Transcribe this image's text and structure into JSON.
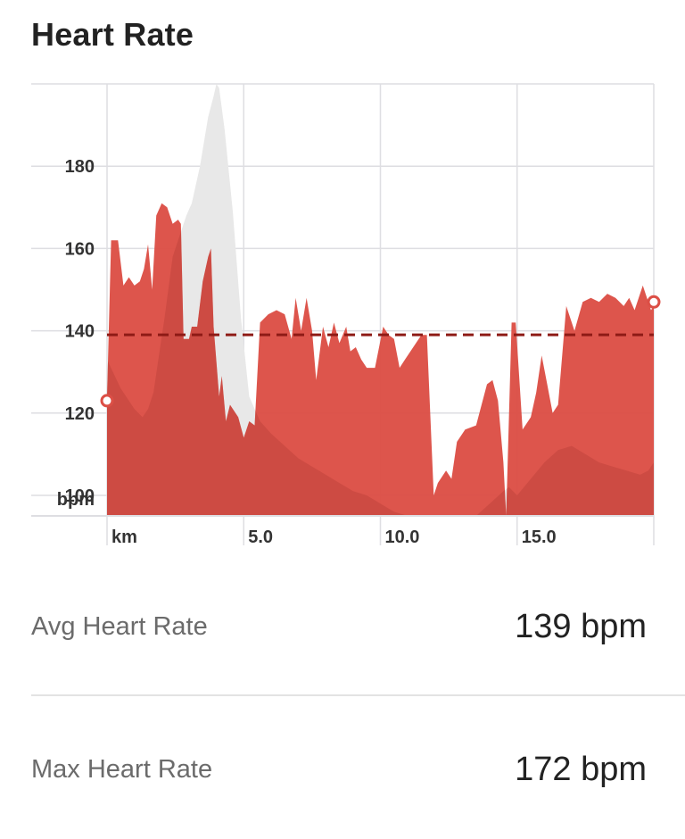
{
  "header": {
    "title": "Heart Rate"
  },
  "stats": [
    {
      "label": "Avg Heart Rate",
      "value": "139 bpm"
    },
    {
      "label": "Max Heart Rate",
      "value": "172 bpm"
    }
  ],
  "colors": {
    "hr_fill": "#dc4f46",
    "elevation_fill": "#e8e8e8",
    "elevation_overlay": "#b03a35",
    "avg_line": "#8e1b16",
    "grid": "#dedee2",
    "marker": "#dc4f46"
  },
  "chart_data": {
    "type": "area",
    "xlabel": "km",
    "ylabel": "bpm",
    "xlim": [
      0,
      20
    ],
    "ylim": [
      95,
      200
    ],
    "x_ticks": [
      {
        "value": 5,
        "label": "5.0"
      },
      {
        "value": 10,
        "label": "10.0"
      },
      {
        "value": 15,
        "label": "15.0"
      }
    ],
    "y_ticks": [
      100,
      120,
      140,
      160,
      180
    ],
    "grid": true,
    "average_line": 139,
    "series": [
      {
        "kind": "heart_rate",
        "x": [
          0,
          0.15,
          0.4,
          0.6,
          0.8,
          1.0,
          1.2,
          1.35,
          1.5,
          1.65,
          1.8,
          2.0,
          2.2,
          2.4,
          2.6,
          2.7,
          2.8,
          3.0,
          3.1,
          3.3,
          3.5,
          3.7,
          3.8,
          3.9,
          4.1,
          4.2,
          4.35,
          4.5,
          4.8,
          5.0,
          5.2,
          5.4,
          5.6,
          5.9,
          6.2,
          6.5,
          6.75,
          6.9,
          7.1,
          7.3,
          7.5,
          7.65,
          7.9,
          8.1,
          8.3,
          8.5,
          8.75,
          8.9,
          9.1,
          9.3,
          9.5,
          9.8,
          10.1,
          10.3,
          10.5,
          10.7,
          10.9,
          11.2,
          11.5,
          11.7,
          11.95,
          12.1,
          12.4,
          12.6,
          12.8,
          13.1,
          13.5,
          13.9,
          14.1,
          14.3,
          14.5,
          14.6,
          14.8,
          14.95,
          15.2,
          15.5,
          15.7,
          15.9,
          16.1,
          16.3,
          16.5,
          16.8,
          17.1,
          17.4,
          17.7,
          18.0,
          18.3,
          18.6,
          18.9,
          19.1,
          19.3,
          19.6,
          19.9,
          20.0
        ],
        "y": [
          124,
          162,
          162,
          151,
          153,
          151,
          152,
          155,
          161,
          150,
          168,
          171,
          170,
          166,
          167,
          166,
          138,
          138,
          141,
          141,
          152,
          158,
          160,
          141,
          124,
          129,
          118,
          122,
          119,
          114,
          118,
          117,
          142,
          144,
          145,
          144,
          138,
          148,
          140,
          148,
          140,
          128,
          141,
          136,
          142,
          137,
          141,
          135,
          136,
          133,
          131,
          131,
          141,
          139,
          138,
          131,
          133,
          136,
          139,
          139,
          100,
          103,
          106,
          104,
          113,
          116,
          117,
          127,
          128,
          123,
          108,
          95,
          142,
          142,
          116,
          119,
          125,
          134,
          127,
          120,
          122,
          146,
          140,
          147,
          148,
          147,
          149,
          148,
          146,
          148,
          145,
          151,
          145,
          146
        ]
      },
      {
        "kind": "elevation",
        "x": [
          0,
          0.5,
          1.0,
          1.3,
          1.5,
          1.7,
          1.9,
          2.1,
          2.4,
          2.7,
          2.9,
          3.1,
          3.4,
          3.7,
          3.9,
          4.0,
          4.1,
          4.3,
          4.6,
          4.9,
          5.2,
          5.6,
          6.0,
          6.5,
          7.0,
          7.5,
          8.0,
          8.5,
          9.0,
          9.5,
          10.0,
          10.5,
          11.0,
          11.5,
          12.0,
          12.5,
          13.0,
          13.5,
          14.0,
          14.5,
          14.7,
          15.0,
          15.5,
          16.0,
          16.5,
          17.0,
          17.5,
          18.0,
          18.5,
          19.0,
          19.5,
          19.8,
          20.0
        ],
        "y": [
          133,
          126,
          121,
          119,
          121,
          125,
          134,
          143,
          158,
          164,
          168,
          171,
          180,
          192,
          197,
          200,
          199,
          189,
          169,
          143,
          124,
          118,
          115,
          112,
          109,
          107,
          105,
          103,
          101,
          100,
          98,
          96,
          95,
          93,
          91,
          92,
          93,
          95,
          98,
          101,
          102,
          100,
          104,
          108,
          111,
          112,
          110,
          108,
          107,
          106,
          105,
          106,
          108
        ]
      }
    ],
    "markers": [
      {
        "x": 0,
        "y": 123
      },
      {
        "x": 20,
        "y": 147
      }
    ]
  }
}
